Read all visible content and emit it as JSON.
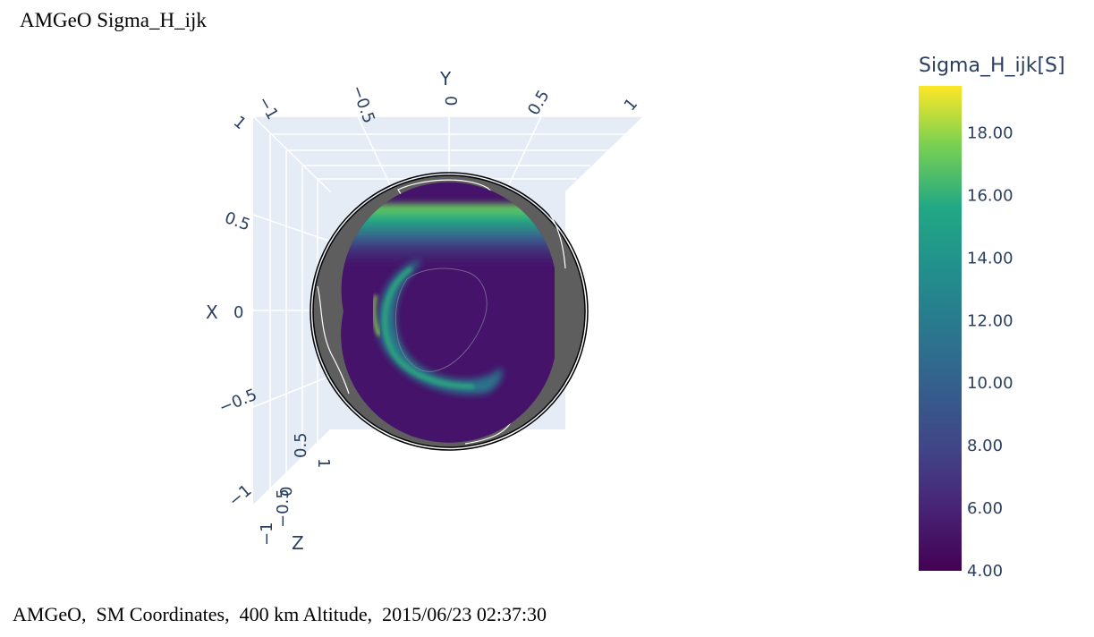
{
  "title": "AMGeO Sigma_H_ijk",
  "footer": "AMGeO,  SM Coordinates,  400 km Altitude,  2015/06/23 02:37:30",
  "chart_data": {
    "type": "heatmap",
    "title": "AMGeO Sigma_H_ijk",
    "variable": "Sigma_H_ijk",
    "colorbar": {
      "title": "Sigma_H_ijk[S]",
      "colorscale": "viridis",
      "range": [
        4.0,
        19.5
      ],
      "ticks": [
        4.0,
        6.0,
        8.0,
        10.0,
        12.0,
        14.0,
        16.0,
        18.0
      ],
      "tick_labels": [
        "4.00",
        "6.00",
        "8.00",
        "10.00",
        "12.00",
        "14.00",
        "16.00",
        "18.00"
      ]
    },
    "axes": {
      "x": {
        "label": "X",
        "ticks": [
          "0.5",
          "0",
          "−0.5",
          "−1"
        ],
        "range": [
          -1,
          1
        ]
      },
      "y": {
        "label": "Y",
        "ticks": [
          "−1",
          "−0.5",
          "0",
          "0.5",
          "1"
        ],
        "range": [
          -1,
          1
        ]
      },
      "z": {
        "label": "Z",
        "ticks": [
          "1",
          "0.5",
          "0",
          "−0.5",
          "−1"
        ],
        "range": [
          -1,
          1
        ]
      }
    },
    "x_top_label": "1",
    "colors": {
      "grid_bg": "#e5ecf6",
      "sphere": "#5e5e5e",
      "low": "#440154",
      "high": "#fde725"
    }
  }
}
